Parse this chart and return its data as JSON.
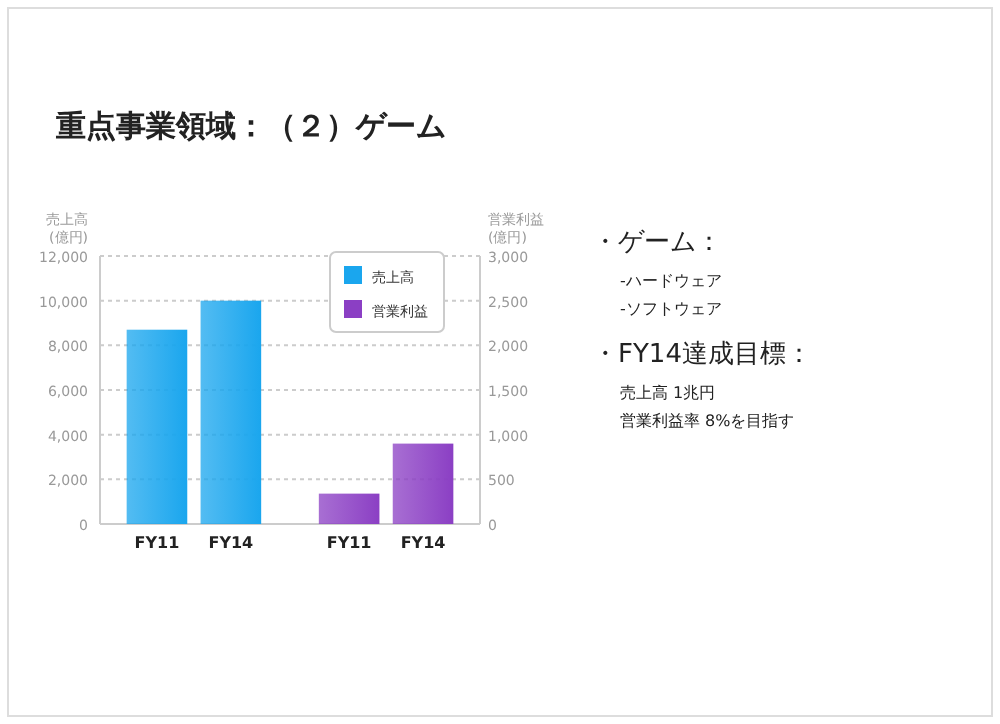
{
  "chart_data": {
    "type": "bar",
    "title": "重点事業領域：（２）ゲーム",
    "ylabel": "売上高 (億円)",
    "y2label": "営業利益 (億円)",
    "categories": [
      "FY11",
      "FY14",
      "FY11",
      "FY14"
    ],
    "series": [
      {
        "name": "売上高",
        "color": "#1aa6ee",
        "values": [
          8700,
          10000,
          null,
          null
        ]
      },
      {
        "name": "営業利益",
        "color": "#8b3fc4",
        "axis": "y2",
        "values": [
          null,
          null,
          340,
          900
        ]
      }
    ],
    "ylim": [
      0,
      12000
    ],
    "yticks": [
      0,
      {
        "value": 2000,
        "label": "2,000"
      },
      {
        "value": 4000,
        "label": "4,000"
      },
      {
        "value": 6000,
        "label": "6,000"
      },
      {
        "value": 8000,
        "label": "8,000"
      },
      {
        "value": 10000,
        "label": "10,000"
      },
      {
        "value": 12000,
        "label": "12,000"
      }
    ],
    "y2lim": [
      0,
      3000
    ],
    "y2ticks": [
      0,
      500,
      {
        "value": 1000,
        "label": "1,000"
      },
      {
        "value": 1500,
        "label": "1,500"
      },
      {
        "value": 2000,
        "label": "2,000"
      },
      {
        "value": 2500,
        "label": "2,500"
      },
      {
        "value": 3000,
        "label": "3,000"
      }
    ],
    "grid": "y",
    "legend": "top right",
    "annotations": [
      "・ゲーム：",
      "-ハードウェア",
      "-ソフトウェア",
      "・FY14達成目標：",
      "売上高 1兆円",
      "営業利益率 8%を目指す"
    ]
  }
}
